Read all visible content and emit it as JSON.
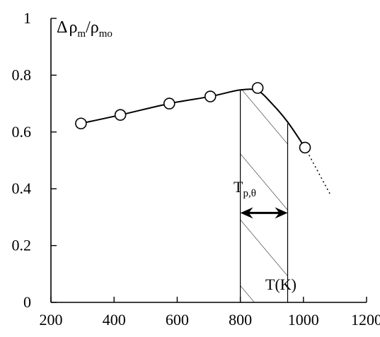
{
  "chart_data": {
    "type": "line",
    "ylabel_parts": {
      "delta": "Δ",
      "rho1": "ρ",
      "sub1": "m",
      "slash": "/",
      "rho2": "ρ",
      "sub2": "mo"
    },
    "xlabel": "T(K)",
    "xlim": [
      200,
      1200
    ],
    "ylim": [
      0,
      1
    ],
    "x_ticks": [
      200,
      400,
      600,
      800,
      1000,
      1200
    ],
    "y_ticks": [
      {
        "value": 0,
        "label": "0"
      },
      {
        "value": 0.2,
        "label": "0.2"
      },
      {
        "value": 0.4,
        "label": "0.4"
      },
      {
        "value": 0.6,
        "label": "0.6"
      },
      {
        "value": 0.8,
        "label": "0.8"
      },
      {
        "value": 1.0,
        "label": "1"
      }
    ],
    "series": [
      {
        "marker": "open-circle",
        "x": [
          295,
          420,
          575,
          705,
          855,
          1005
        ],
        "y": [
          0.63,
          0.66,
          0.7,
          0.725,
          0.755,
          0.545
        ]
      }
    ],
    "smooth_curve": {
      "x": [
        295,
        420,
        575,
        705,
        800,
        855,
        900,
        950,
        1005
      ],
      "y": [
        0.63,
        0.66,
        0.7,
        0.725,
        0.748,
        0.745,
        0.7,
        0.635,
        0.545
      ]
    },
    "extrapolation": {
      "style": "dotted",
      "x": [
        1005,
        1085
      ],
      "y": [
        0.545,
        0.38
      ]
    },
    "shaded_region": {
      "x0": 800,
      "x1": 950,
      "pattern": "diagonal-hatch"
    },
    "annotation": {
      "base": "T",
      "subscript": "p,θ",
      "arrow_from": 800,
      "arrow_to": 950,
      "arrow_y": 0.315
    },
    "grid": false
  }
}
